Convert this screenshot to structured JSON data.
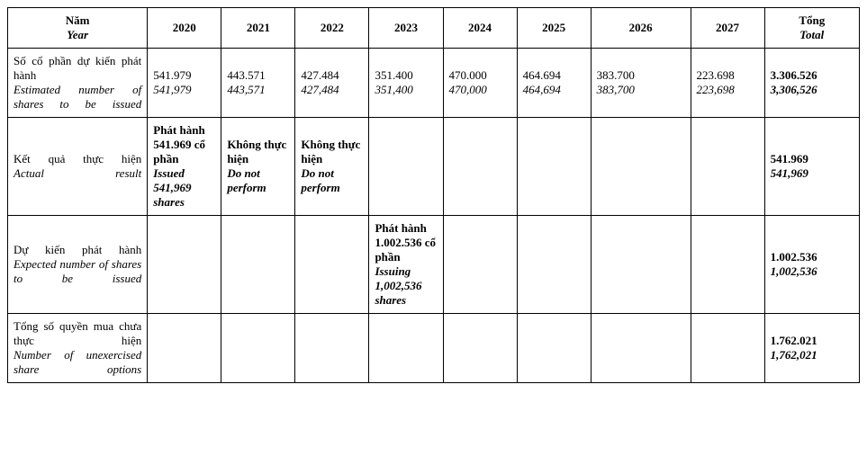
{
  "header": {
    "label_vn": "Năm",
    "label_en": "Year",
    "years": [
      "2020",
      "2021",
      "2022",
      "2023",
      "2024",
      "2025",
      "2026",
      "2027"
    ],
    "total_vn": "Tổng",
    "total_en": "Total"
  },
  "rows": {
    "estimated": {
      "label_vn": "Số cổ phần dự kiến phát hành",
      "label_en": "Estimated number of shares to be issued",
      "cells": [
        {
          "vn": "541.979",
          "en": "541,979"
        },
        {
          "vn": "443.571",
          "en": "443,571"
        },
        {
          "vn": "427.484",
          "en": "427,484"
        },
        {
          "vn": "351.400",
          "en": "351,400"
        },
        {
          "vn": "470.000",
          "en": "470,000"
        },
        {
          "vn": "464.694",
          "en": "464,694"
        },
        {
          "vn": "383.700",
          "en": "383,700"
        },
        {
          "vn": "223.698",
          "en": "223,698"
        }
      ],
      "total": {
        "vn": "3.306.526",
        "en": "3,306,526"
      }
    },
    "actual": {
      "label_vn": "Kết quả thực hiện",
      "label_en": "Actual result",
      "cells": [
        {
          "vn": "Phát hành 541.969 cổ phần",
          "en": "Issued 541,969 shares",
          "bold": true
        },
        {
          "vn": "Không thực hiện",
          "en": "Do not perform",
          "bold": true
        },
        {
          "vn": "Không thực hiện",
          "en": "Do not perform",
          "bold": true
        },
        {
          "vn": "",
          "en": ""
        },
        {
          "vn": "",
          "en": ""
        },
        {
          "vn": "",
          "en": ""
        },
        {
          "vn": "",
          "en": ""
        },
        {
          "vn": "",
          "en": ""
        }
      ],
      "total": {
        "vn": "541.969",
        "en": "541,969"
      }
    },
    "expected": {
      "label_vn": "Dự kiến phát hành",
      "label_en": "Expected number of shares to be issued",
      "cells": [
        {
          "vn": "",
          "en": ""
        },
        {
          "vn": "",
          "en": ""
        },
        {
          "vn": "",
          "en": ""
        },
        {
          "vn": "Phát hành 1.002.536 cổ phần",
          "en": "Issuing 1,002,536 shares",
          "bold": true
        },
        {
          "vn": "",
          "en": ""
        },
        {
          "vn": "",
          "en": ""
        },
        {
          "vn": "",
          "en": ""
        },
        {
          "vn": "",
          "en": ""
        }
      ],
      "total": {
        "vn": "1.002.536",
        "en": "1,002,536"
      }
    },
    "unexercised": {
      "label_vn": "Tổng số quyền mua chưa thực hiện",
      "label_en": "Number of unexercised share options",
      "cells": [
        {
          "vn": "",
          "en": ""
        },
        {
          "vn": "",
          "en": ""
        },
        {
          "vn": "",
          "en": ""
        },
        {
          "vn": "",
          "en": ""
        },
        {
          "vn": "",
          "en": ""
        },
        {
          "vn": "",
          "en": ""
        },
        {
          "vn": "",
          "en": ""
        },
        {
          "vn": "",
          "en": ""
        }
      ],
      "total": {
        "vn": "1.762.021",
        "en": "1,762,021"
      }
    }
  }
}
